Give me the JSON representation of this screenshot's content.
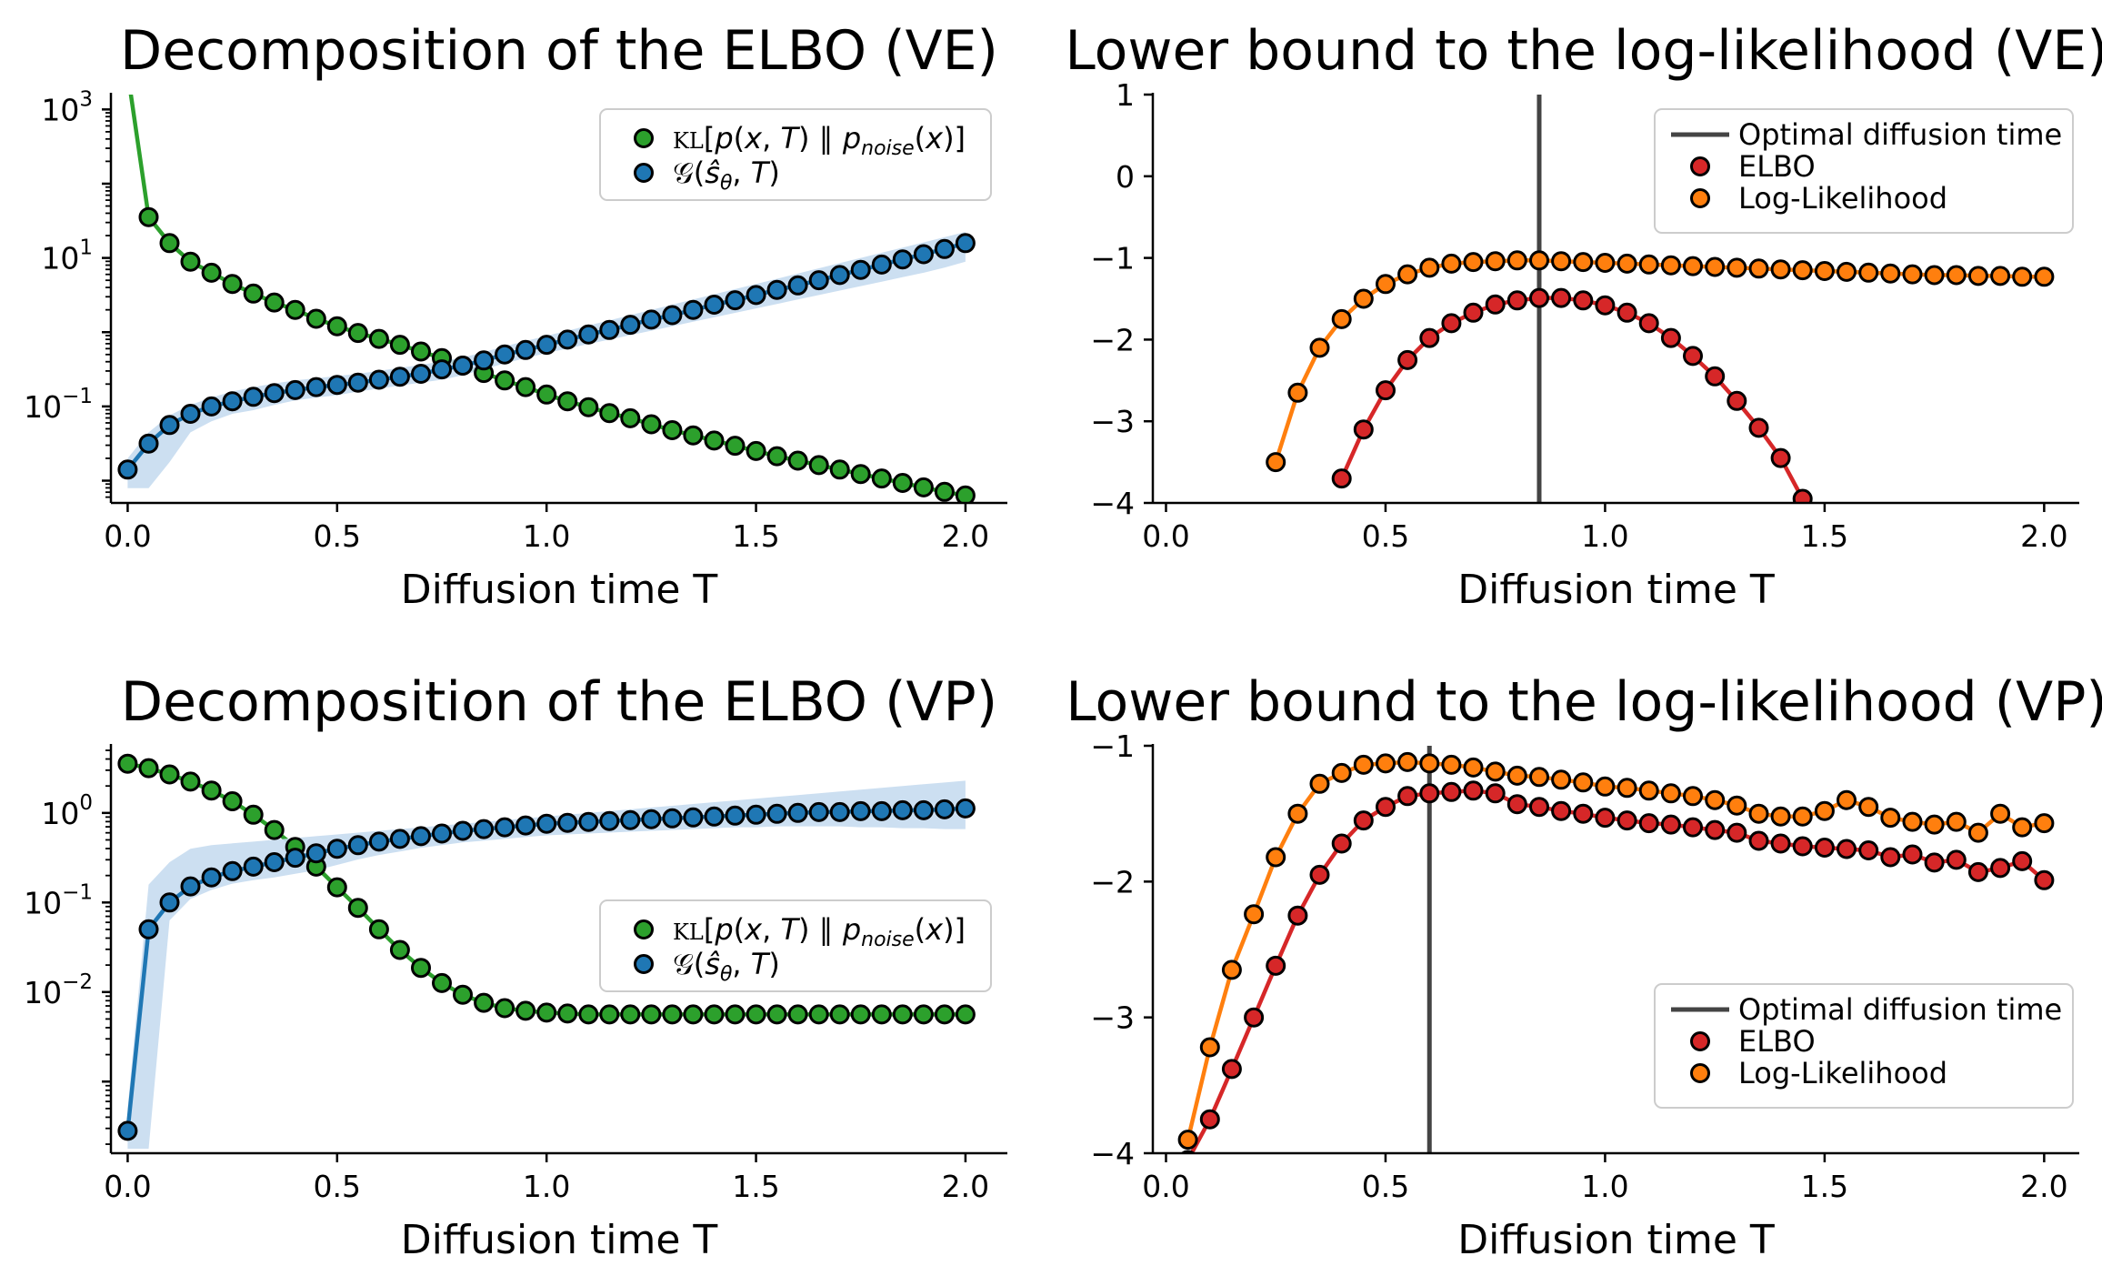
{
  "chart_data": [
    {
      "id": "ve-decomp",
      "type": "scatter",
      "title": "Decomposition of the ELBO (VE)",
      "xlabel": "Diffusion time  T",
      "xlim": [
        -0.04,
        2.1
      ],
      "yscale": "log",
      "ylim_log10": [
        -2.3,
        3.2
      ],
      "xticks": [
        "0.0",
        "0.5",
        "1.0",
        "1.5",
        "2.0"
      ],
      "xtick_values": [
        0,
        0.5,
        1,
        1.5,
        2
      ],
      "yticks": [
        {
          "label": "10",
          "exp": "−1",
          "log10": -1
        },
        {
          "label": "10",
          "exp": "1",
          "log10": 1
        },
        {
          "label": "10",
          "exp": "3",
          "log10": 3
        }
      ],
      "legend": {
        "placement": "top-right"
      },
      "series": [
        {
          "name": "KL[p(x, T) ∥ p_noise(x)]",
          "color": "#2ca02c",
          "x": [
            0,
            0.05,
            0.1,
            0.15,
            0.2,
            0.25,
            0.3,
            0.35,
            0.4,
            0.45,
            0.5,
            0.55,
            0.6,
            0.65,
            0.7,
            0.75,
            0.8,
            0.85,
            0.9,
            0.95,
            1.0,
            1.05,
            1.1,
            1.15,
            1.2,
            1.25,
            1.3,
            1.35,
            1.4,
            1.45,
            1.5,
            1.55,
            1.6,
            1.65,
            1.7,
            1.75,
            1.8,
            1.85,
            1.9,
            1.95,
            2.0
          ],
          "log10": [
            3.5,
            1.55,
            1.2,
            0.95,
            0.8,
            0.65,
            0.52,
            0.4,
            0.3,
            0.18,
            0.08,
            -0.01,
            -0.09,
            -0.17,
            -0.26,
            -0.35,
            -0.45,
            -0.55,
            -0.65,
            -0.74,
            -0.84,
            -0.93,
            -1.01,
            -1.09,
            -1.16,
            -1.24,
            -1.32,
            -1.39,
            -1.46,
            -1.53,
            -1.6,
            -1.67,
            -1.73,
            -1.79,
            -1.85,
            -1.91,
            -1.97,
            -2.03,
            -2.09,
            -2.15,
            -2.2
          ]
        },
        {
          "name": "G(ŝθ, T)",
          "color": "#1f77b4",
          "band_color": "#c6dbef",
          "x": [
            0,
            0.05,
            0.1,
            0.15,
            0.2,
            0.25,
            0.3,
            0.35,
            0.4,
            0.45,
            0.5,
            0.55,
            0.6,
            0.65,
            0.7,
            0.75,
            0.8,
            0.85,
            0.9,
            0.95,
            1.0,
            1.05,
            1.1,
            1.15,
            1.2,
            1.25,
            1.3,
            1.35,
            1.4,
            1.45,
            1.5,
            1.55,
            1.6,
            1.65,
            1.7,
            1.75,
            1.8,
            1.85,
            1.9,
            1.95,
            2.0
          ],
          "log10": [
            -1.85,
            -1.5,
            -1.25,
            -1.1,
            -1.0,
            -0.93,
            -0.87,
            -0.82,
            -0.78,
            -0.74,
            -0.71,
            -0.68,
            -0.64,
            -0.6,
            -0.56,
            -0.5,
            -0.45,
            -0.38,
            -0.3,
            -0.24,
            -0.17,
            -0.1,
            -0.03,
            0.03,
            0.1,
            0.17,
            0.23,
            0.3,
            0.37,
            0.43,
            0.5,
            0.57,
            0.63,
            0.7,
            0.77,
            0.84,
            0.91,
            0.98,
            1.05,
            1.12,
            1.2
          ],
          "band_low": [
            -2.1,
            -2.1,
            -1.75,
            -1.35,
            -1.2,
            -1.1,
            -1.05,
            -0.98,
            -0.92,
            -0.88,
            -0.85,
            -0.8,
            -0.76,
            -0.72,
            -0.68,
            -0.64,
            -0.58,
            -0.5,
            -0.42,
            -0.35,
            -0.28,
            -0.22,
            -0.16,
            -0.1,
            -0.04,
            0.02,
            0.08,
            0.14,
            0.2,
            0.26,
            0.32,
            0.38,
            0.44,
            0.5,
            0.56,
            0.62,
            0.68,
            0.74,
            0.8,
            0.87,
            0.95
          ],
          "band_high": [
            -1.7,
            -1.35,
            -1.12,
            -0.98,
            -0.88,
            -0.8,
            -0.74,
            -0.69,
            -0.65,
            -0.62,
            -0.59,
            -0.56,
            -0.52,
            -0.48,
            -0.44,
            -0.39,
            -0.34,
            -0.27,
            -0.19,
            -0.12,
            -0.05,
            0.02,
            0.09,
            0.16,
            0.23,
            0.3,
            0.37,
            0.44,
            0.51,
            0.58,
            0.65,
            0.72,
            0.79,
            0.86,
            0.93,
            1.0,
            1.07,
            1.14,
            1.21,
            1.28,
            1.35
          ]
        }
      ]
    },
    {
      "id": "ve-bound",
      "type": "scatter",
      "title": "Lower bound to the log-likelihood (VE)",
      "xlabel": "Diffusion time T",
      "xlim": [
        -0.03,
        2.08
      ],
      "ylim": [
        -4,
        1
      ],
      "xticks": [
        "0.0",
        "0.5",
        "1.0",
        "1.5",
        "2.0"
      ],
      "xtick_values": [
        0,
        0.5,
        1,
        1.5,
        2
      ],
      "yticks": [
        "1",
        "0",
        "−1",
        "−2",
        "−3",
        "−4"
      ],
      "ytick_values": [
        1,
        0,
        -1,
        -2,
        -3,
        -4
      ],
      "vline": {
        "x": 0.85,
        "color": "#444444"
      },
      "legend": {
        "placement": "top-right",
        "entries": [
          "Optimal diffusion time",
          "ELBO",
          "Log-Likelihood"
        ]
      },
      "series": [
        {
          "name": "ELBO",
          "color": "#d62728",
          "x": [
            0.4,
            0.45,
            0.5,
            0.55,
            0.6,
            0.65,
            0.7,
            0.75,
            0.8,
            0.85,
            0.9,
            0.95,
            1.0,
            1.05,
            1.1,
            1.15,
            1.2,
            1.25,
            1.3,
            1.35,
            1.4,
            1.45
          ],
          "y": [
            -3.7,
            -3.1,
            -2.62,
            -2.25,
            -1.98,
            -1.8,
            -1.67,
            -1.57,
            -1.52,
            -1.49,
            -1.49,
            -1.52,
            -1.58,
            -1.67,
            -1.8,
            -1.98,
            -2.2,
            -2.45,
            -2.75,
            -3.08,
            -3.45,
            -3.95
          ]
        },
        {
          "name": "Log-Likelihood",
          "color": "#ff7f0e",
          "x": [
            0.25,
            0.3,
            0.35,
            0.4,
            0.45,
            0.5,
            0.55,
            0.6,
            0.65,
            0.7,
            0.75,
            0.8,
            0.85,
            0.9,
            0.95,
            1.0,
            1.05,
            1.1,
            1.15,
            1.2,
            1.25,
            1.3,
            1.35,
            1.4,
            1.45,
            1.5,
            1.55,
            1.6,
            1.65,
            1.7,
            1.75,
            1.8,
            1.85,
            1.9,
            1.95,
            2.0
          ],
          "y": [
            -3.5,
            -2.65,
            -2.1,
            -1.75,
            -1.5,
            -1.32,
            -1.2,
            -1.12,
            -1.07,
            -1.05,
            -1.04,
            -1.03,
            -1.03,
            -1.04,
            -1.05,
            -1.06,
            -1.07,
            -1.08,
            -1.09,
            -1.1,
            -1.11,
            -1.12,
            -1.13,
            -1.14,
            -1.15,
            -1.16,
            -1.17,
            -1.18,
            -1.19,
            -1.2,
            -1.21,
            -1.21,
            -1.22,
            -1.22,
            -1.23,
            -1.23
          ]
        }
      ]
    },
    {
      "id": "vp-decomp",
      "type": "scatter",
      "title": "Decomposition of the ELBO (VP)",
      "xlabel": "Diffusion time  T",
      "xlim": [
        -0.04,
        2.1
      ],
      "yscale": "log",
      "ylim_log10": [
        -3.8,
        0.75
      ],
      "xticks": [
        "0.0",
        "0.5",
        "1.0",
        "1.5",
        "2.0"
      ],
      "xtick_values": [
        0,
        0.5,
        1,
        1.5,
        2
      ],
      "yticks": [
        {
          "label": "10",
          "exp": "−2",
          "log10": -2
        },
        {
          "label": "10",
          "exp": "−1",
          "log10": -1
        },
        {
          "label": "10",
          "exp": "0",
          "log10": 0
        }
      ],
      "legend": {
        "placement": "center-right"
      },
      "series": [
        {
          "name": "KL[p(x, T) ∥ p_noise(x)]",
          "color": "#2ca02c",
          "x": [
            0,
            0.05,
            0.1,
            0.15,
            0.2,
            0.25,
            0.3,
            0.35,
            0.4,
            0.45,
            0.5,
            0.55,
            0.6,
            0.65,
            0.7,
            0.75,
            0.8,
            0.85,
            0.9,
            0.95,
            1.0,
            1.05,
            1.1,
            1.15,
            1.2,
            1.25,
            1.3,
            1.35,
            1.4,
            1.45,
            1.5,
            1.55,
            1.6,
            1.65,
            1.7,
            1.75,
            1.8,
            1.85,
            1.9,
            1.95,
            2.0
          ],
          "log10": [
            0.55,
            0.5,
            0.43,
            0.35,
            0.25,
            0.13,
            -0.02,
            -0.19,
            -0.38,
            -0.6,
            -0.83,
            -1.06,
            -1.3,
            -1.53,
            -1.73,
            -1.9,
            -2.03,
            -2.12,
            -2.18,
            -2.21,
            -2.23,
            -2.24,
            -2.25,
            -2.25,
            -2.25,
            -2.25,
            -2.25,
            -2.25,
            -2.25,
            -2.25,
            -2.25,
            -2.25,
            -2.25,
            -2.25,
            -2.25,
            -2.25,
            -2.25,
            -2.25,
            -2.25,
            -2.25,
            -2.25
          ]
        },
        {
          "name": "G(ŝθ, T)",
          "color": "#1f77b4",
          "band_color": "#c6dbef",
          "x": [
            0,
            0.05,
            0.1,
            0.15,
            0.2,
            0.25,
            0.3,
            0.35,
            0.4,
            0.45,
            0.5,
            0.55,
            0.6,
            0.65,
            0.7,
            0.75,
            0.8,
            0.85,
            0.9,
            0.95,
            1.0,
            1.05,
            1.1,
            1.15,
            1.2,
            1.25,
            1.3,
            1.35,
            1.4,
            1.45,
            1.5,
            1.55,
            1.6,
            1.65,
            1.7,
            1.75,
            1.8,
            1.85,
            1.9,
            1.95,
            2.0
          ],
          "log10": [
            -3.55,
            -1.3,
            -1.0,
            -0.82,
            -0.72,
            -0.65,
            -0.6,
            -0.55,
            -0.5,
            -0.45,
            -0.4,
            -0.36,
            -0.32,
            -0.29,
            -0.26,
            -0.23,
            -0.2,
            -0.18,
            -0.16,
            -0.14,
            -0.12,
            -0.11,
            -0.1,
            -0.09,
            -0.08,
            -0.07,
            -0.06,
            -0.05,
            -0.04,
            -0.03,
            -0.02,
            -0.01,
            0.0,
            0.01,
            0.01,
            0.02,
            0.02,
            0.03,
            0.03,
            0.04,
            0.05
          ],
          "band_low": [
            -3.75,
            -3.75,
            -1.2,
            -0.96,
            -0.86,
            -0.79,
            -0.75,
            -0.72,
            -0.68,
            -0.64,
            -0.58,
            -0.52,
            -0.47,
            -0.43,
            -0.39,
            -0.36,
            -0.33,
            -0.31,
            -0.29,
            -0.27,
            -0.25,
            -0.24,
            -0.23,
            -0.22,
            -0.21,
            -0.2,
            -0.19,
            -0.18,
            -0.17,
            -0.16,
            -0.16,
            -0.15,
            -0.15,
            -0.15,
            -0.15,
            -0.16,
            -0.16,
            -0.17,
            -0.17,
            -0.18,
            -0.18
          ],
          "band_high": [
            -3.3,
            -0.8,
            -0.55,
            -0.4,
            -0.36,
            -0.34,
            -0.32,
            -0.3,
            -0.28,
            -0.26,
            -0.24,
            -0.22,
            -0.2,
            -0.18,
            -0.16,
            -0.14,
            -0.12,
            -0.1,
            -0.08,
            -0.06,
            -0.04,
            -0.02,
            0.0,
            0.02,
            0.04,
            0.06,
            0.08,
            0.1,
            0.12,
            0.14,
            0.16,
            0.18,
            0.2,
            0.22,
            0.24,
            0.26,
            0.28,
            0.3,
            0.32,
            0.34,
            0.36
          ]
        }
      ]
    },
    {
      "id": "vp-bound",
      "type": "scatter",
      "title": "Lower bound to the log-likelihood (VP)",
      "xlabel": "Diffusion time T",
      "xlim": [
        -0.03,
        2.08
      ],
      "ylim": [
        -4,
        -1
      ],
      "xticks": [
        "0.0",
        "0.5",
        "1.0",
        "1.5",
        "2.0"
      ],
      "xtick_values": [
        0,
        0.5,
        1,
        1.5,
        2
      ],
      "yticks": [
        "−1",
        "−2",
        "−3",
        "−4"
      ],
      "ytick_values": [
        -1,
        -2,
        -3,
        -4
      ],
      "vline": {
        "x": 0.6,
        "color": "#444444"
      },
      "legend": {
        "placement": "lower-right",
        "entries": [
          "Optimal diffusion time",
          "ELBO",
          "Log-Likelihood"
        ]
      },
      "series": [
        {
          "name": "ELBO",
          "color": "#d62728",
          "x": [
            0.05,
            0.1,
            0.15,
            0.2,
            0.25,
            0.3,
            0.35,
            0.4,
            0.45,
            0.5,
            0.55,
            0.6,
            0.65,
            0.7,
            0.75,
            0.8,
            0.85,
            0.9,
            0.95,
            1.0,
            1.05,
            1.1,
            1.15,
            1.2,
            1.25,
            1.3,
            1.35,
            1.4,
            1.45,
            1.5,
            1.55,
            1.6,
            1.65,
            1.7,
            1.75,
            1.8,
            1.85,
            1.9,
            1.95,
            2.0
          ],
          "y": [
            -4.05,
            -3.75,
            -3.38,
            -3.0,
            -2.62,
            -2.25,
            -1.95,
            -1.72,
            -1.55,
            -1.45,
            -1.37,
            -1.35,
            -1.34,
            -1.33,
            -1.35,
            -1.43,
            -1.45,
            -1.48,
            -1.5,
            -1.53,
            -1.55,
            -1.57,
            -1.58,
            -1.6,
            -1.62,
            -1.64,
            -1.7,
            -1.72,
            -1.74,
            -1.75,
            -1.76,
            -1.77,
            -1.82,
            -1.8,
            -1.86,
            -1.84,
            -1.93,
            -1.9,
            -1.85,
            -1.99
          ]
        },
        {
          "name": "Log-Likelihood",
          "color": "#ff7f0e",
          "x": [
            0.05,
            0.1,
            0.15,
            0.2,
            0.25,
            0.3,
            0.35,
            0.4,
            0.45,
            0.5,
            0.55,
            0.6,
            0.65,
            0.7,
            0.75,
            0.8,
            0.85,
            0.9,
            0.95,
            1.0,
            1.05,
            1.1,
            1.15,
            1.2,
            1.25,
            1.3,
            1.35,
            1.4,
            1.45,
            1.5,
            1.55,
            1.6,
            1.65,
            1.7,
            1.75,
            1.8,
            1.85,
            1.9,
            1.95,
            2.0
          ],
          "y": [
            -3.9,
            -3.22,
            -2.65,
            -2.24,
            -1.82,
            -1.5,
            -1.28,
            -1.2,
            -1.14,
            -1.13,
            -1.12,
            -1.13,
            -1.14,
            -1.16,
            -1.19,
            -1.22,
            -1.23,
            -1.25,
            -1.27,
            -1.3,
            -1.31,
            -1.33,
            -1.35,
            -1.37,
            -1.4,
            -1.44,
            -1.5,
            -1.52,
            -1.52,
            -1.48,
            -1.4,
            -1.45,
            -1.53,
            -1.56,
            -1.58,
            -1.56,
            -1.64,
            -1.5,
            -1.6,
            -1.57
          ]
        }
      ]
    }
  ]
}
